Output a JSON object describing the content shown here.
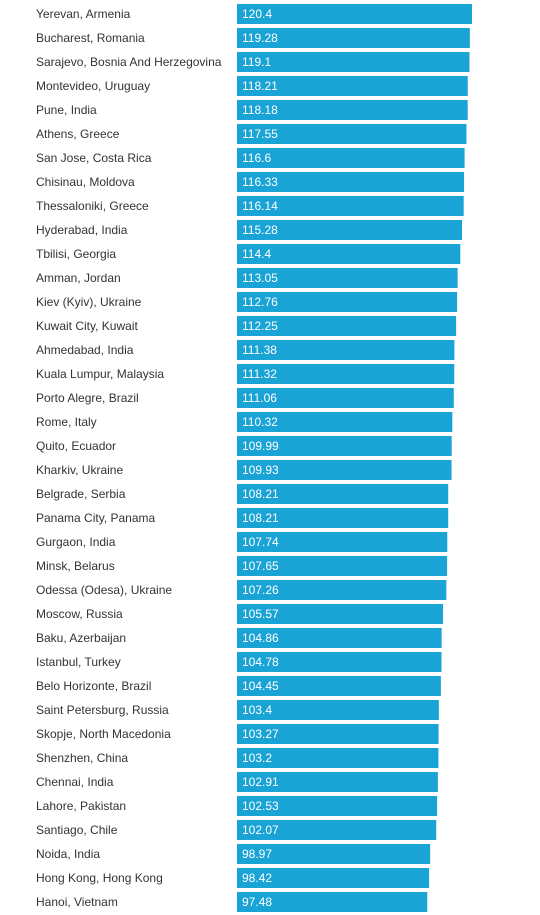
{
  "chart_data": {
    "type": "bar",
    "orientation": "horizontal",
    "bar_color": "#1aa3d5",
    "label_color": "#333333",
    "value_label_color": "#ffffff",
    "categories": [
      "Yerevan, Armenia",
      "Bucharest, Romania",
      "Sarajevo, Bosnia And Herzegovina",
      "Montevideo, Uruguay",
      "Pune, India",
      "Athens, Greece",
      "San Jose, Costa Rica",
      "Chisinau, Moldova",
      "Thessaloniki, Greece",
      "Hyderabad, India",
      "Tbilisi, Georgia",
      "Amman, Jordan",
      "Kiev (Kyiv), Ukraine",
      "Kuwait City, Kuwait",
      "Ahmedabad, India",
      "Kuala Lumpur, Malaysia",
      "Porto Alegre, Brazil",
      "Rome, Italy",
      "Quito, Ecuador",
      "Kharkiv, Ukraine",
      "Belgrade, Serbia",
      "Panama City, Panama",
      "Gurgaon, India",
      "Minsk, Belarus",
      "Odessa (Odesa), Ukraine",
      "Moscow, Russia",
      "Baku, Azerbaijan",
      "Istanbul, Turkey",
      "Belo Horizonte, Brazil",
      "Saint Petersburg, Russia",
      "Skopje, North Macedonia",
      "Shenzhen, China",
      "Chennai, India",
      "Lahore, Pakistan",
      "Santiago, Chile",
      "Noida, India",
      "Hong Kong, Hong Kong",
      "Hanoi, Vietnam"
    ],
    "values": [
      120.4,
      119.28,
      119.1,
      118.21,
      118.18,
      117.55,
      116.6,
      116.33,
      116.14,
      115.28,
      114.4,
      113.05,
      112.76,
      112.25,
      111.38,
      111.32,
      111.06,
      110.32,
      109.99,
      109.93,
      108.21,
      108.21,
      107.74,
      107.65,
      107.26,
      105.57,
      104.86,
      104.78,
      104.45,
      103.4,
      103.27,
      103.2,
      102.91,
      102.53,
      102.07,
      98.97,
      98.42,
      97.48
    ],
    "value_labels": [
      "120.4",
      "119.28",
      "119.1",
      "118.21",
      "118.18",
      "117.55",
      "116.6",
      "116.33",
      "116.14",
      "115.28",
      "114.4",
      "113.05",
      "112.76",
      "112.25",
      "111.38",
      "111.32",
      "111.06",
      "110.32",
      "109.99",
      "109.93",
      "108.21",
      "108.21",
      "107.74",
      "107.65",
      "107.26",
      "105.57",
      "104.86",
      "104.78",
      "104.45",
      "103.4",
      "103.27",
      "103.2",
      "102.91",
      "102.53",
      "102.07",
      "98.97",
      "98.42",
      "97.48"
    ],
    "xlim": [
      0,
      120.4
    ],
    "grid": false,
    "legend": "none"
  }
}
